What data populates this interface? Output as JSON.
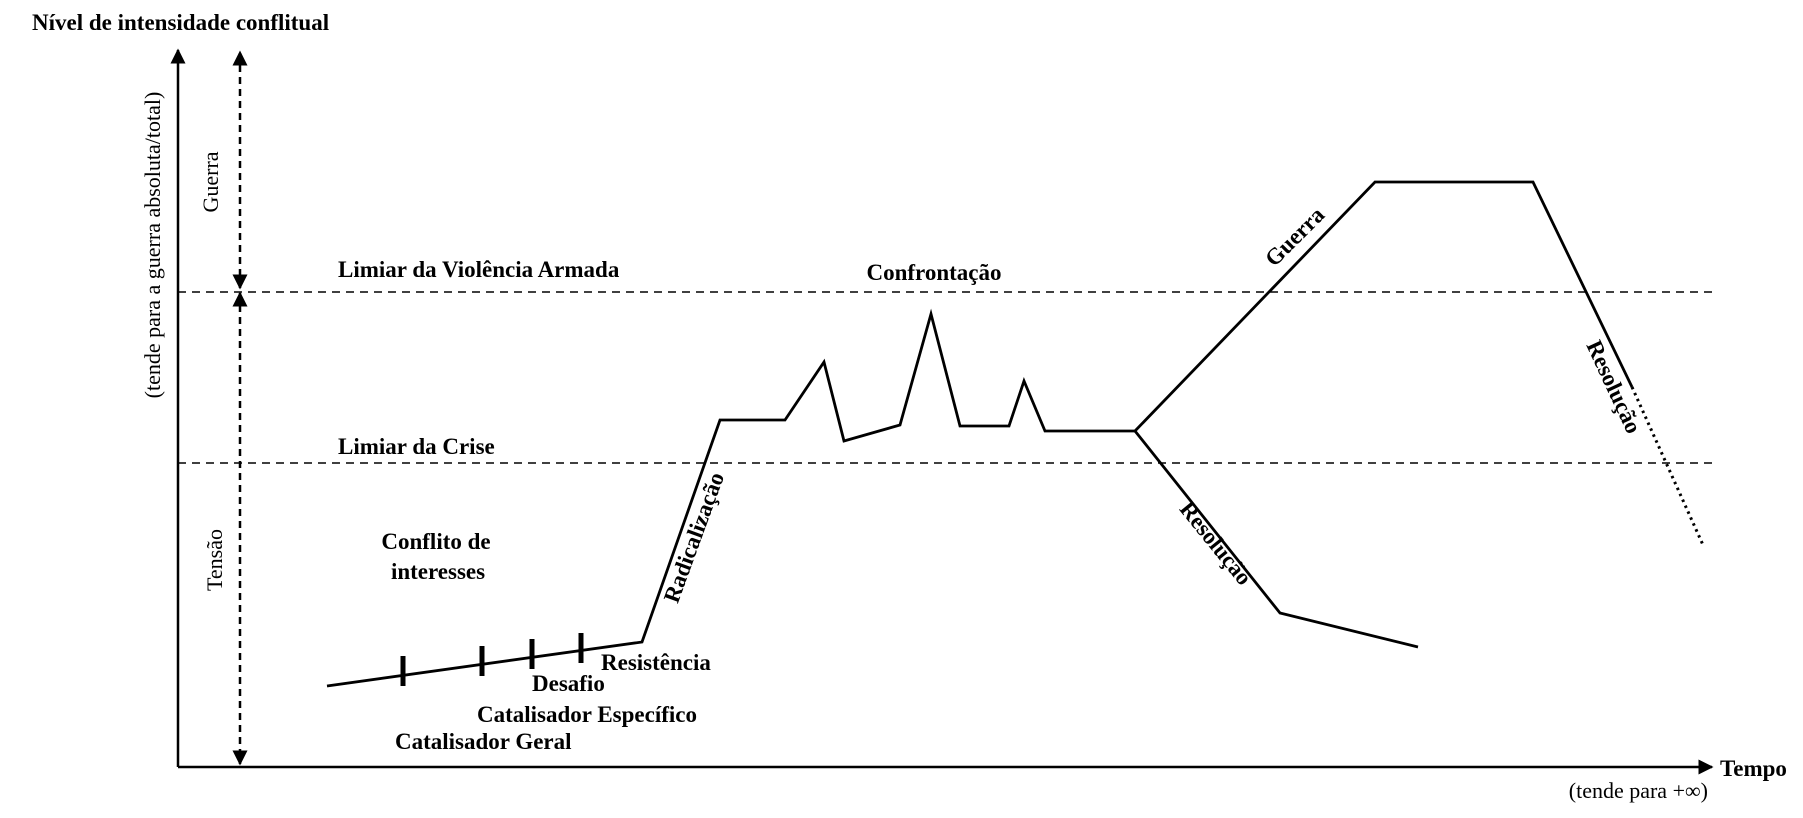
{
  "y_axis": {
    "title": "Nível de intensidade conflitual",
    "subtitle": "(tende para a guerra absoluta/total)"
  },
  "x_axis": {
    "title": "Tempo",
    "subtitle": "(tende para +∞)"
  },
  "zones": {
    "upper": "Guerra",
    "lower": "Tensão"
  },
  "thresholds": {
    "armed_violence": "Limiar da Violência Armada",
    "crisis": "Limiar da Crise"
  },
  "phases": {
    "conflict_line1": "Conflito de",
    "conflict_line2": "interesses",
    "catalyst_general": "Catalisador Geral",
    "catalyst_specific": "Catalisador Específico",
    "challenge": "Desafio",
    "resistance": "Resistência",
    "radicalization": "Radicalização",
    "confrontation": "Confrontação",
    "war": "Guerra",
    "resolution_low": "Resolução",
    "resolution_high": "Resolução"
  }
}
